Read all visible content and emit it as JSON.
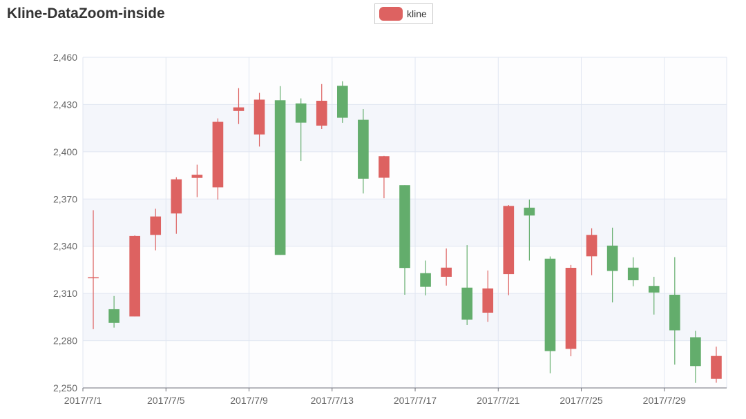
{
  "title": "Kline-DataZoom-inside",
  "legend": {
    "label": "kline"
  },
  "colors": {
    "up": "#dd6261",
    "down": "#63ad6c",
    "band": "#f4f6fb",
    "grid": "#e0e6f1",
    "axis": "#6e7079"
  },
  "chart_data": {
    "type": "candlestick",
    "title": "Kline-DataZoom-inside",
    "series": [
      {
        "name": "kline"
      }
    ],
    "y_ticks": [
      "2,250",
      "2,280",
      "2,310",
      "2,340",
      "2,370",
      "2,400",
      "2,430",
      "2,460"
    ],
    "ylim": [
      2250,
      2460
    ],
    "x_ticks": [
      "2017/7/1",
      "2017/7/5",
      "2017/7/9",
      "2017/7/13",
      "2017/7/17",
      "2017/7/21",
      "2017/7/25",
      "2017/7/29"
    ],
    "dates": [
      "2017/7/1",
      "2017/7/2",
      "2017/7/3",
      "2017/7/4",
      "2017/7/5",
      "2017/7/6",
      "2017/7/7",
      "2017/7/8",
      "2017/7/9",
      "2017/7/10",
      "2017/7/11",
      "2017/7/12",
      "2017/7/13",
      "2017/7/14",
      "2017/7/15",
      "2017/7/16",
      "2017/7/17",
      "2017/7/18",
      "2017/7/19",
      "2017/7/20",
      "2017/7/21",
      "2017/7/22",
      "2017/7/23",
      "2017/7/24",
      "2017/7/25",
      "2017/7/26",
      "2017/7/27",
      "2017/7/28",
      "2017/7/29",
      "2017/7/30",
      "2017/7/31"
    ],
    "ohlc": [
      [
        2320.3,
        2320.3,
        2287.3,
        2362.9
      ],
      [
        2300.0,
        2291.3,
        2288.3,
        2308.4
      ],
      [
        2295.4,
        2346.5,
        2295.4,
        2346.9
      ],
      [
        2347.2,
        2358.9,
        2337.4,
        2363.8
      ],
      [
        2360.8,
        2382.5,
        2347.9,
        2383.8
      ],
      [
        2383.4,
        2385.4,
        2371.2,
        2391.8
      ],
      [
        2377.4,
        2419.0,
        2369.6,
        2421.2
      ],
      [
        2425.9,
        2428.2,
        2417.6,
        2440.4
      ],
      [
        2411.0,
        2433.1,
        2403.3,
        2437.4
      ],
      [
        2432.7,
        2334.5,
        2334.5,
        2441.7
      ],
      [
        2430.7,
        2418.5,
        2394.2,
        2433.9
      ],
      [
        2416.6,
        2432.4,
        2414.4,
        2443.0
      ],
      [
        2441.9,
        2421.6,
        2418.4,
        2444.8
      ],
      [
        2420.3,
        2382.9,
        2373.5,
        2427.1
      ],
      [
        2383.5,
        2397.2,
        2370.5,
        2397.4
      ],
      [
        2378.8,
        2326.2,
        2309.2,
        2378.8
      ],
      [
        2322.9,
        2314.2,
        2308.8,
        2330.9
      ],
      [
        2320.6,
        2326.4,
        2315.0,
        2338.6
      ],
      [
        2313.7,
        2293.4,
        2289.9,
        2340.7
      ],
      [
        2297.8,
        2313.2,
        2292.0,
        2324.6
      ],
      [
        2322.3,
        2365.6,
        2308.9,
        2366.2
      ],
      [
        2364.5,
        2359.5,
        2330.9,
        2369.6
      ],
      [
        2332.1,
        2273.4,
        2259.3,
        2333.5
      ],
      [
        2274.8,
        2326.3,
        2270.1,
        2328.1
      ],
      [
        2333.6,
        2347.2,
        2321.6,
        2351.4
      ],
      [
        2340.4,
        2324.3,
        2304.3,
        2351.8
      ],
      [
        2326.4,
        2318.4,
        2314.6,
        2333.0
      ],
      [
        2314.8,
        2310.6,
        2296.6,
        2320.6
      ],
      [
        2309.2,
        2286.6,
        2264.8,
        2333.1
      ],
      [
        2282.2,
        2263.9,
        2253.2,
        2286.3
      ],
      [
        2255.8,
        2270.3,
        2253.3,
        2276.2
      ]
    ]
  }
}
